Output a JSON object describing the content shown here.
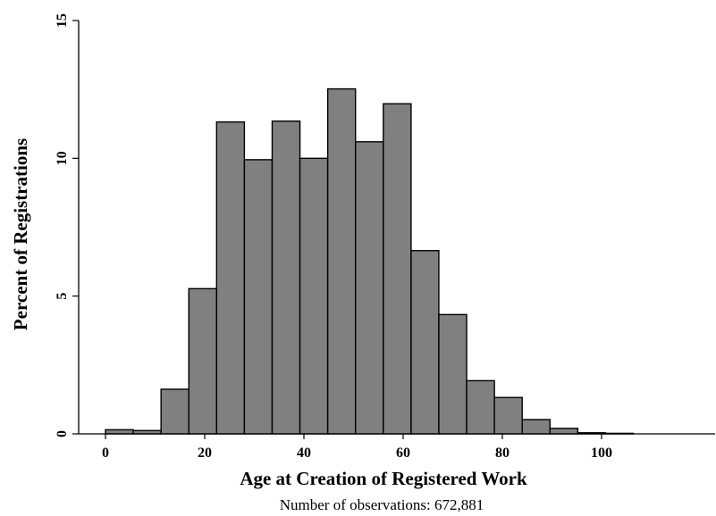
{
  "chart_data": {
    "type": "bar",
    "title": "",
    "xlabel": "Age at Creation of Registered Work",
    "ylabel": "Percent of Registrations",
    "note": "Number of observations: 672,881",
    "bar_color": "#808080",
    "edge_color": "#000000",
    "xlim": [
      0,
      110
    ],
    "ylim": [
      0,
      15
    ],
    "xticks": [
      0,
      20,
      40,
      60,
      80,
      100
    ],
    "yticks": [
      0,
      5,
      10,
      15
    ],
    "bin_width": 5.6,
    "bins": [
      {
        "x0": 0.0,
        "x1": 5.6,
        "value": 0.15
      },
      {
        "x0": 5.6,
        "x1": 11.2,
        "value": 0.12
      },
      {
        "x0": 11.2,
        "x1": 16.8,
        "value": 1.62
      },
      {
        "x0": 16.8,
        "x1": 22.4,
        "value": 5.27
      },
      {
        "x0": 22.4,
        "x1": 28.0,
        "value": 11.32
      },
      {
        "x0": 28.0,
        "x1": 33.6,
        "value": 9.95
      },
      {
        "x0": 33.6,
        "x1": 39.2,
        "value": 11.35
      },
      {
        "x0": 39.2,
        "x1": 44.8,
        "value": 10.0
      },
      {
        "x0": 44.8,
        "x1": 50.4,
        "value": 12.52
      },
      {
        "x0": 50.4,
        "x1": 56.0,
        "value": 10.6
      },
      {
        "x0": 56.0,
        "x1": 61.6,
        "value": 11.98
      },
      {
        "x0": 61.6,
        "x1": 67.2,
        "value": 6.65
      },
      {
        "x0": 67.2,
        "x1": 72.8,
        "value": 4.33
      },
      {
        "x0": 72.8,
        "x1": 78.4,
        "value": 1.93
      },
      {
        "x0": 78.4,
        "x1": 84.0,
        "value": 1.32
      },
      {
        "x0": 84.0,
        "x1": 89.6,
        "value": 0.52
      },
      {
        "x0": 89.6,
        "x1": 95.2,
        "value": 0.2
      },
      {
        "x0": 95.2,
        "x1": 100.8,
        "value": 0.04
      },
      {
        "x0": 100.8,
        "x1": 106.4,
        "value": 0.02
      }
    ]
  }
}
